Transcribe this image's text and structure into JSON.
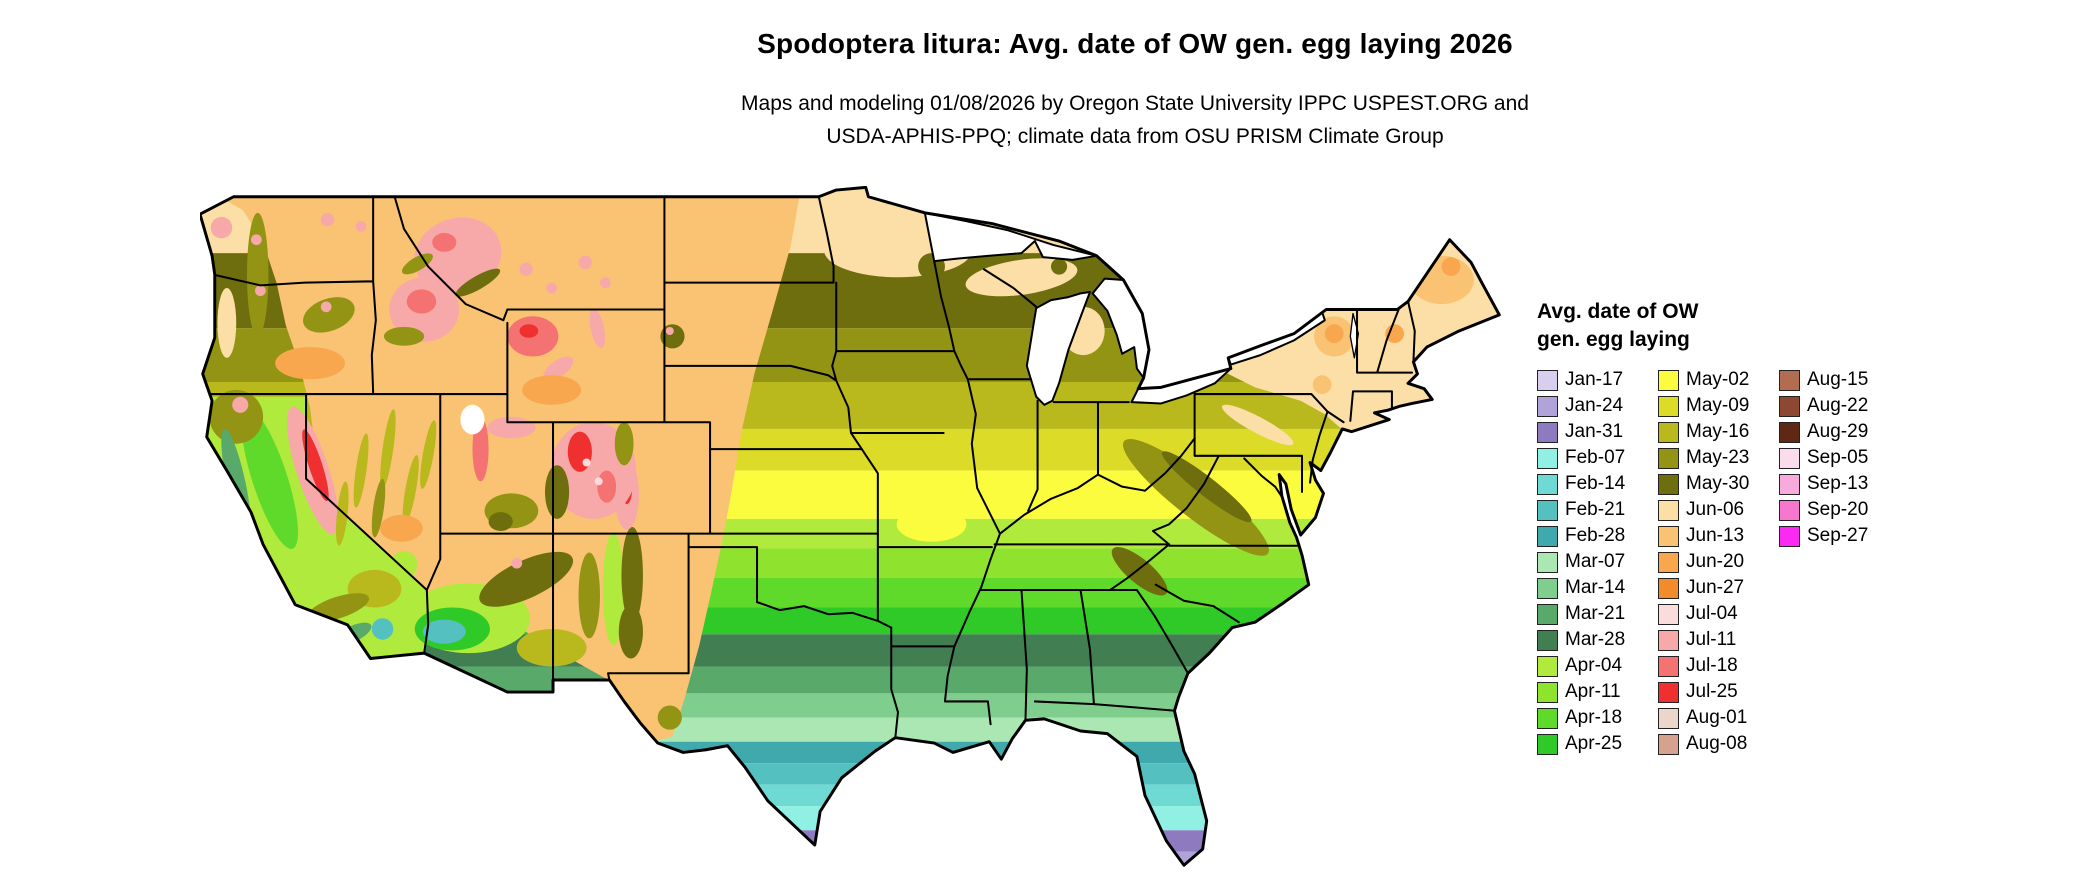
{
  "title": "Spodoptera litura: Avg. date of OW gen. egg laying 2026",
  "subtitle_line1": "Maps and modeling 01/08/2026 by Oregon State University IPPC USPEST.ORG and",
  "subtitle_line2": "USDA-APHIS-PPQ; climate data from OSU PRISM Climate Group",
  "legend": {
    "title_line1": "Avg. date of OW",
    "title_line2": "gen. egg laying",
    "column_sizes": [
      15,
      15,
      7
    ],
    "entries": [
      {
        "label": "Jan-17",
        "color": "#D8CEEE"
      },
      {
        "label": "Jan-24",
        "color": "#B2A2DA"
      },
      {
        "label": "Jan-31",
        "color": "#8E7ABF"
      },
      {
        "label": "Feb-07",
        "color": "#8FF0E3"
      },
      {
        "label": "Feb-14",
        "color": "#6FD9D4"
      },
      {
        "label": "Feb-21",
        "color": "#55C0C0"
      },
      {
        "label": "Feb-28",
        "color": "#3FA9AE"
      },
      {
        "label": "Mar-07",
        "color": "#AAE7B2"
      },
      {
        "label": "Mar-14",
        "color": "#80CE8D"
      },
      {
        "label": "Mar-21",
        "color": "#59A96A"
      },
      {
        "label": "Mar-28",
        "color": "#417E52"
      },
      {
        "label": "Apr-04",
        "color": "#B0EA3C"
      },
      {
        "label": "Apr-11",
        "color": "#8FE32E"
      },
      {
        "label": "Apr-18",
        "color": "#5FDA2B"
      },
      {
        "label": "Apr-25",
        "color": "#30CA28"
      },
      {
        "label": "May-02",
        "color": "#FCFC3E"
      },
      {
        "label": "May-09",
        "color": "#DCDC28"
      },
      {
        "label": "May-16",
        "color": "#B9B91E"
      },
      {
        "label": "May-23",
        "color": "#939314"
      },
      {
        "label": "May-30",
        "color": "#6E6E0E"
      },
      {
        "label": "Jun-06",
        "color": "#FBDFA6"
      },
      {
        "label": "Jun-13",
        "color": "#FAC374"
      },
      {
        "label": "Jun-20",
        "color": "#F8A74E"
      },
      {
        "label": "Jun-27",
        "color": "#F18B2B"
      },
      {
        "label": "Jul-04",
        "color": "#FADCDC"
      },
      {
        "label": "Jul-11",
        "color": "#F7A8A8"
      },
      {
        "label": "Jul-18",
        "color": "#F47272"
      },
      {
        "label": "Jul-25",
        "color": "#F03030"
      },
      {
        "label": "Aug-01",
        "color": "#ECD6C9"
      },
      {
        "label": "Aug-08",
        "color": "#D5A28D"
      },
      {
        "label": "Aug-15",
        "color": "#B26C52"
      },
      {
        "label": "Aug-22",
        "color": "#8C4830"
      },
      {
        "label": "Aug-29",
        "color": "#5E2815"
      },
      {
        "label": "Sep-05",
        "color": "#FBDCEC"
      },
      {
        "label": "Sep-13",
        "color": "#F9AADC"
      },
      {
        "label": "Sep-20",
        "color": "#F776CE"
      },
      {
        "label": "Sep-27",
        "color": "#FB2AF2"
      }
    ]
  },
  "map": {
    "region": "Continental United States",
    "kind": "Raster choropleth of average overwintering-generation egg-laying date",
    "border_color": "#000000",
    "water_color": "#FFFFFF",
    "background": "#FFFFFF"
  }
}
